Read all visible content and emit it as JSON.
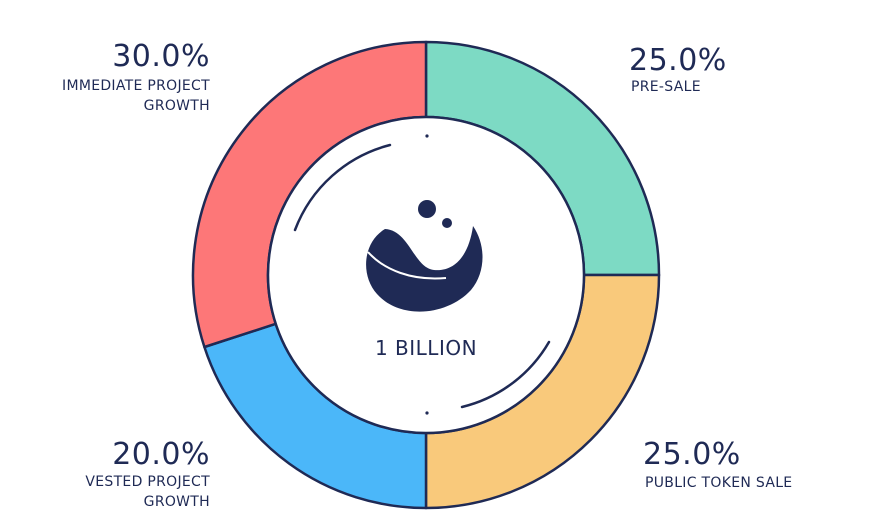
{
  "chart_data": {
    "type": "pie",
    "style": "donut",
    "center_label": "1 BILLION",
    "slices": [
      {
        "label_lines": [
          "PRE-SALE"
        ],
        "percent_text": "25.0%",
        "value": 25.0,
        "color": "#7ddac4"
      },
      {
        "label_lines": [
          "PUBLIC TOKEN SALE"
        ],
        "percent_text": "25.0%",
        "value": 25.0,
        "color": "#f9c97b"
      },
      {
        "label_lines": [
          "VESTED PROJECT",
          "GROWTH"
        ],
        "percent_text": "20.0%",
        "value": 20.0,
        "color": "#4bb7f9"
      },
      {
        "label_lines": [
          "IMMEDIATE PROJECT",
          "GROWTH"
        ],
        "percent_text": "30.0%",
        "value": 30.0,
        "color": "#fd7778"
      }
    ],
    "outline_color": "#1f2a55"
  }
}
